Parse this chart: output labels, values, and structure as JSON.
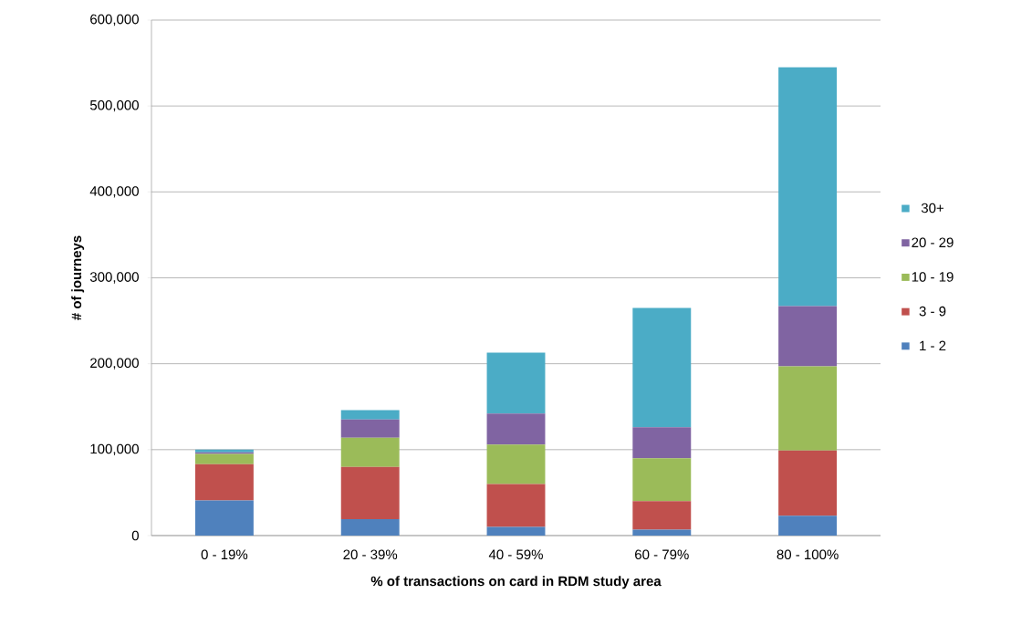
{
  "chart_data": {
    "type": "bar",
    "stacked": true,
    "xlabel": "% of transactions on card in RDM study area",
    "ylabel": "# of journeys",
    "categories": [
      "0 - 19%",
      "20 - 39%",
      "40 - 59%",
      "60 - 79%",
      "80 - 100%"
    ],
    "series": [
      {
        "name": "1 - 2",
        "color": "#4f81bd",
        "values": [
          41000,
          19000,
          10000,
          7000,
          23000
        ]
      },
      {
        "name": "3 - 9",
        "color": "#c0504d",
        "values": [
          42000,
          61000,
          50000,
          33000,
          76000
        ]
      },
      {
        "name": "10 - 19",
        "color": "#9bbb59",
        "values": [
          12000,
          34000,
          46000,
          50000,
          98000
        ]
      },
      {
        "name": "20 - 29",
        "color": "#8064a2",
        "values": [
          2000,
          21000,
          36000,
          36000,
          70000
        ]
      },
      {
        "name": "30+",
        "color": "#4bacc6",
        "values": [
          3000,
          11000,
          71000,
          139000,
          278000
        ]
      }
    ],
    "ylim": [
      0,
      600000
    ],
    "yticks": [
      {
        "value": 0,
        "label": "0"
      },
      {
        "value": 100000,
        "label": "100,000"
      },
      {
        "value": 200000,
        "label": "200,000"
      },
      {
        "value": 300000,
        "label": "300,000"
      },
      {
        "value": 400000,
        "label": "400,000"
      },
      {
        "value": 500000,
        "label": "500,000"
      },
      {
        "value": 600000,
        "label": "600,000"
      }
    ],
    "grid": "y",
    "legend": "right"
  }
}
